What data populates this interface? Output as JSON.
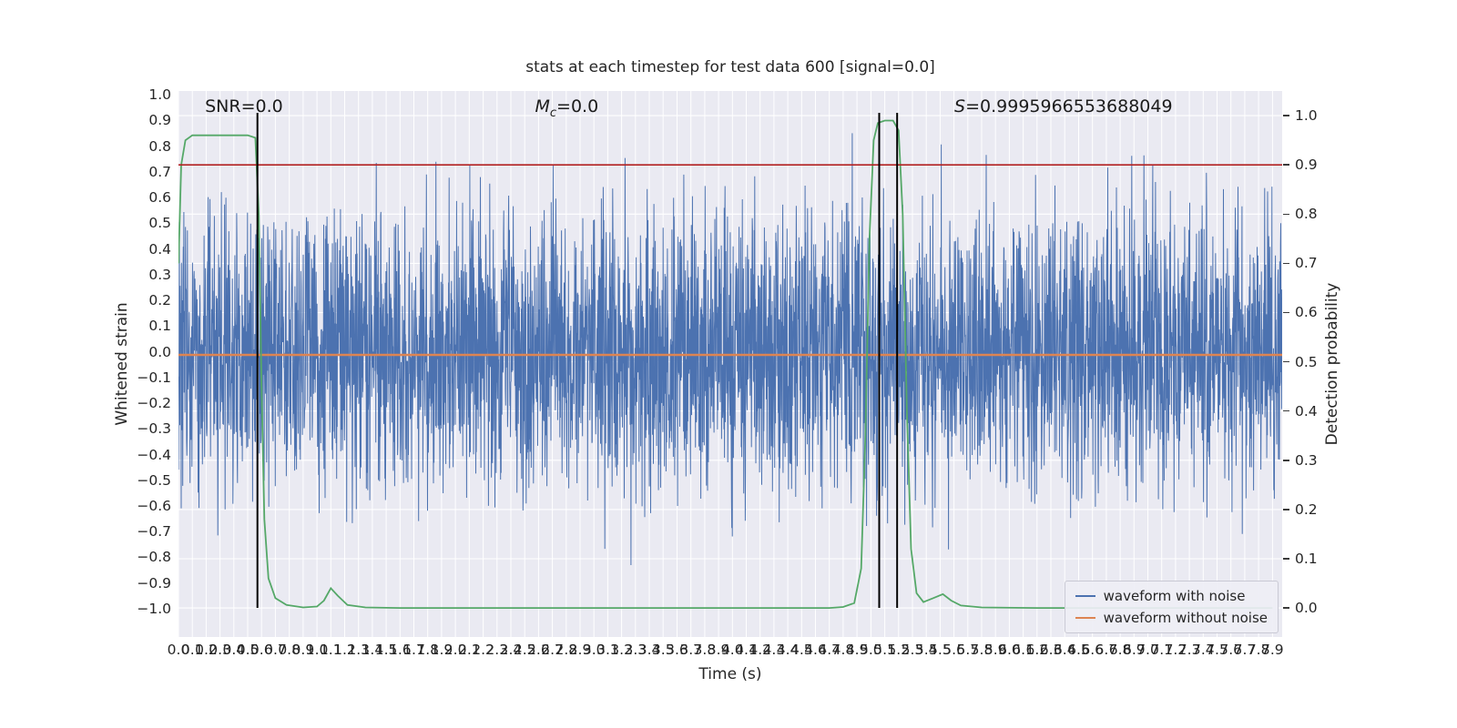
{
  "figure": {
    "title": "stats at each timestep for test data 600 [signal=0.0]",
    "xlabel": "Time (s)",
    "ylabel_left": "Whitened strain",
    "ylabel_right": "Detection probability"
  },
  "chart_data": {
    "type": "line",
    "title": "stats at each timestep for test data 600 [signal=0.0]",
    "xlabel": "Time (s)",
    "ylabel": "Whitened strain",
    "ylabel_right": "Detection probability",
    "xlim": [
      0.0,
      7.97
    ],
    "ylim_left": [
      -1.11,
      1.015
    ],
    "ylim_right": [
      -0.059,
      1.05
    ],
    "x_ticks": {
      "min": 0.0,
      "max": 7.9,
      "step": 0.1
    },
    "y_ticks_left": {
      "min": -1.0,
      "max": 1.0,
      "step": 0.1
    },
    "y_ticks_right": {
      "min": 0.0,
      "max": 1.0,
      "step": 0.1
    },
    "grid": true,
    "background": "#eaeaf2",
    "grid_color": "#ffffff",
    "annotations": [
      {
        "id": "snr",
        "base": "SNR",
        "sub": "",
        "rest": "=0.0",
        "x_frac": 0.024,
        "italic": false
      },
      {
        "id": "mc",
        "base": "M",
        "sub": "c",
        "rest": "=0.0",
        "x_frac": 0.323,
        "italic": true
      },
      {
        "id": "s",
        "base": "S",
        "sub": "",
        "rest": "=0.9995966553688049",
        "x_frac": 0.703,
        "italic": true
      }
    ],
    "series": [
      {
        "name": "waveform with noise",
        "color": "#4c72b0",
        "axis": "left",
        "kind": "noise",
        "seed": 600,
        "samples": 4096,
        "sigma": 0.27,
        "clip": 0.96
      },
      {
        "name": "waveform without noise",
        "color": "#dd8452",
        "axis": "left",
        "kind": "constant",
        "value": -0.012
      },
      {
        "name": "detection probability",
        "color": "#55a868",
        "axis": "right",
        "kind": "points",
        "points": [
          [
            0.0,
            0.7
          ],
          [
            0.02,
            0.9
          ],
          [
            0.05,
            0.95
          ],
          [
            0.1,
            0.96
          ],
          [
            0.25,
            0.96
          ],
          [
            0.4,
            0.96
          ],
          [
            0.5,
            0.96
          ],
          [
            0.555,
            0.955
          ],
          [
            0.58,
            0.8
          ],
          [
            0.6,
            0.45
          ],
          [
            0.62,
            0.18
          ],
          [
            0.65,
            0.06
          ],
          [
            0.7,
            0.02
          ],
          [
            0.78,
            0.006
          ],
          [
            0.9,
            0.001
          ],
          [
            1.0,
            0.003
          ],
          [
            1.05,
            0.015
          ],
          [
            1.1,
            0.04
          ],
          [
            1.15,
            0.025
          ],
          [
            1.22,
            0.006
          ],
          [
            1.35,
            0.001
          ],
          [
            1.6,
            0.0
          ],
          [
            2.0,
            0.0
          ],
          [
            2.5,
            0.0
          ],
          [
            3.0,
            0.0
          ],
          [
            3.5,
            0.0
          ],
          [
            4.0,
            0.0
          ],
          [
            4.4,
            0.0
          ],
          [
            4.7,
            0.0
          ],
          [
            4.8,
            0.002
          ],
          [
            4.88,
            0.01
          ],
          [
            4.93,
            0.08
          ],
          [
            4.96,
            0.35
          ],
          [
            4.99,
            0.75
          ],
          [
            5.02,
            0.95
          ],
          [
            5.05,
            0.985
          ],
          [
            5.1,
            0.99
          ],
          [
            5.16,
            0.99
          ],
          [
            5.2,
            0.97
          ],
          [
            5.23,
            0.8
          ],
          [
            5.26,
            0.4
          ],
          [
            5.29,
            0.12
          ],
          [
            5.33,
            0.03
          ],
          [
            5.38,
            0.012
          ],
          [
            5.45,
            0.02
          ],
          [
            5.52,
            0.028
          ],
          [
            5.58,
            0.015
          ],
          [
            5.65,
            0.005
          ],
          [
            5.8,
            0.001
          ],
          [
            6.2,
            0.0
          ],
          [
            6.8,
            0.0
          ],
          [
            7.4,
            0.0
          ],
          [
            7.9,
            0.0
          ]
        ]
      }
    ],
    "threshold_line": {
      "axis": "right",
      "y": 0.9,
      "color": "#b22222"
    },
    "event_lines": {
      "x": [
        0.57,
        5.06,
        5.19
      ],
      "color": "#000000"
    },
    "legend": {
      "position": "lower right",
      "entries": [
        {
          "label": "waveform with noise",
          "color": "#4c72b0"
        },
        {
          "label": "waveform without noise",
          "color": "#dd8452"
        }
      ]
    }
  }
}
